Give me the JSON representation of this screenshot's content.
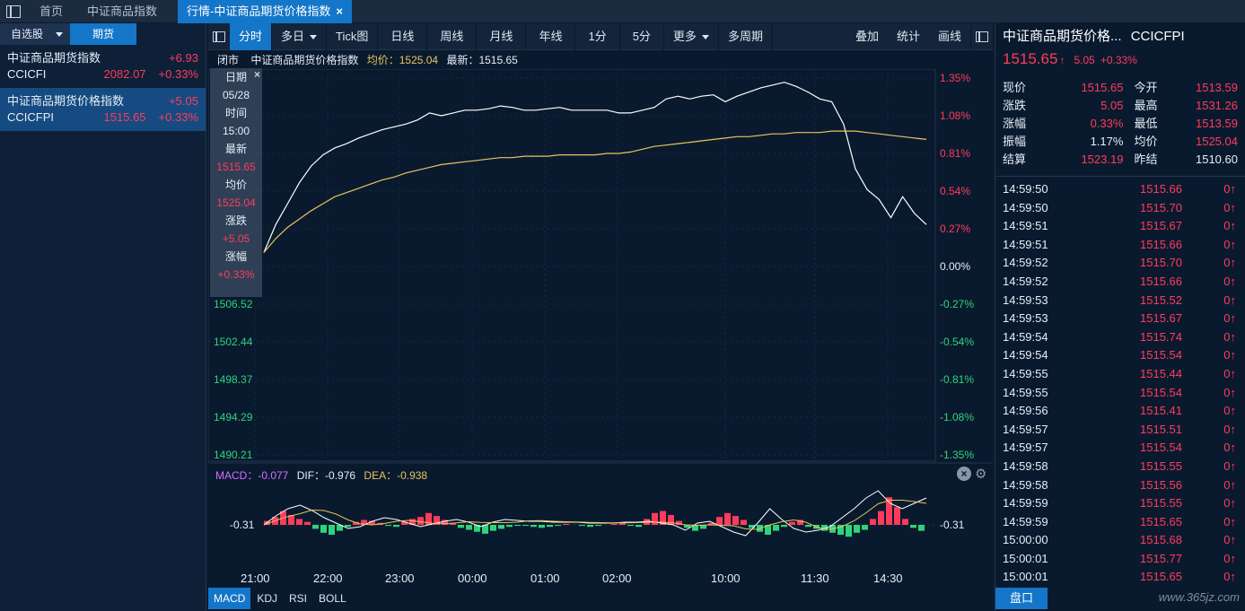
{
  "tabs": [
    {
      "label": "首页"
    },
    {
      "label": "中证商品指数"
    },
    {
      "label": "行情-中证商品期货价格指数"
    }
  ],
  "left": {
    "dropdown": "自选股",
    "futures_tab": "期货",
    "quotes": [
      {
        "name": "中证商品期货指数",
        "change": "+6.93",
        "code": "CCICFI",
        "price": "2082.07",
        "pct": "+0.33%"
      },
      {
        "name": "中证商品期货价格指数",
        "change": "+5.05",
        "code": "CCICFPI",
        "price": "1515.65",
        "pct": "+0.33%"
      }
    ]
  },
  "toolbar": {
    "items": [
      "分时",
      "多日",
      "Tick图",
      "日线",
      "周线",
      "月线",
      "年线",
      "1分",
      "5分",
      "更多",
      "多周期"
    ],
    "right_items": [
      "叠加",
      "统计",
      "画线"
    ]
  },
  "infoline": {
    "status": "闭市",
    "name": "中证商品期货价格指数",
    "avg_label": "均价：1525.04",
    "last_label": "最新：1515.65"
  },
  "tooltip": {
    "date_label": "日期",
    "date": "05/28",
    "time_label": "时间",
    "time": "15:00",
    "last_label": "最新",
    "last": "1515.65",
    "avg_label": "均价",
    "avg": "1525.04",
    "chg_label": "涨跌",
    "chg": "+5.05",
    "pct_label": "涨幅",
    "pct": "+0.33%"
  },
  "macd": {
    "macd_label": "MACD：-0.077",
    "dif_label": "DIF：-0.976",
    "dea_label": "DEA：-0.938",
    "axis_value": "-0.31"
  },
  "bottom_tabs": [
    "MACD",
    "KDJ",
    "RSI",
    "BOLL"
  ],
  "right": {
    "title": "中证商品期货价格...",
    "code": "CCICFPI",
    "price": "1515.65",
    "change": "5.05",
    "pct": "+0.33%",
    "stats": [
      {
        "k1": "现价",
        "v1": "1515.65",
        "c1": "up",
        "k2": "今开",
        "v2": "1513.59",
        "c2": "up"
      },
      {
        "k1": "涨跌",
        "v1": "5.05",
        "c1": "up",
        "k2": "最高",
        "v2": "1531.26",
        "c2": "up"
      },
      {
        "k1": "涨幅",
        "v1": "0.33%",
        "c1": "up",
        "k2": "最低",
        "v2": "1513.59",
        "c2": "up"
      },
      {
        "k1": "振幅",
        "v1": "1.17%",
        "c1": "white",
        "k2": "均价",
        "v2": "1525.04",
        "c2": "up"
      },
      {
        "k1": "结算",
        "v1": "1523.19",
        "c1": "up",
        "k2": "昨结",
        "v2": "1510.60",
        "c2": "white"
      }
    ],
    "ticks": [
      {
        "t": "14:59:50",
        "p": "1515.66",
        "v": "0"
      },
      {
        "t": "14:59:50",
        "p": "1515.70",
        "v": "0"
      },
      {
        "t": "14:59:51",
        "p": "1515.67",
        "v": "0"
      },
      {
        "t": "14:59:51",
        "p": "1515.66",
        "v": "0"
      },
      {
        "t": "14:59:52",
        "p": "1515.70",
        "v": "0"
      },
      {
        "t": "14:59:52",
        "p": "1515.66",
        "v": "0"
      },
      {
        "t": "14:59:53",
        "p": "1515.52",
        "v": "0"
      },
      {
        "t": "14:59:53",
        "p": "1515.67",
        "v": "0"
      },
      {
        "t": "14:59:54",
        "p": "1515.74",
        "v": "0"
      },
      {
        "t": "14:59:54",
        "p": "1515.54",
        "v": "0"
      },
      {
        "t": "14:59:55",
        "p": "1515.44",
        "v": "0"
      },
      {
        "t": "14:59:55",
        "p": "1515.54",
        "v": "0"
      },
      {
        "t": "14:59:56",
        "p": "1515.41",
        "v": "0"
      },
      {
        "t": "14:59:57",
        "p": "1515.51",
        "v": "0"
      },
      {
        "t": "14:59:57",
        "p": "1515.54",
        "v": "0"
      },
      {
        "t": "14:59:58",
        "p": "1515.55",
        "v": "0"
      },
      {
        "t": "14:59:58",
        "p": "1515.56",
        "v": "0"
      },
      {
        "t": "14:59:59",
        "p": "1515.55",
        "v": "0"
      },
      {
        "t": "14:59:59",
        "p": "1515.65",
        "v": "0"
      },
      {
        "t": "15:00:00",
        "p": "1515.68",
        "v": "0"
      },
      {
        "t": "15:00:01",
        "p": "1515.77",
        "v": "0"
      },
      {
        "t": "15:00:01",
        "p": "1515.65",
        "v": "0"
      }
    ],
    "pankou": "盘口"
  },
  "watermark": "www.365jz.com",
  "chart_data": {
    "type": "line",
    "left_axis": [
      "1506.52",
      "1502.44",
      "1498.37",
      "1494.29",
      "1490.21"
    ],
    "right_axis": [
      "1.35%",
      "1.08%",
      "0.81%",
      "0.54%",
      "0.27%",
      "0.00%",
      "-0.27%",
      "-0.54%",
      "-0.81%",
      "-1.08%",
      "-1.35%"
    ],
    "x_ticks": [
      "21:00",
      "22:00",
      "23:00",
      "00:00",
      "01:00",
      "02:00",
      "10:00",
      "11:30",
      "14:30"
    ],
    "series": [
      {
        "name": "最新",
        "color": "#ffffff",
        "pct": [
          0.1,
          0.3,
          0.45,
          0.6,
          0.72,
          0.8,
          0.85,
          0.88,
          0.92,
          0.95,
          0.98,
          1.0,
          1.02,
          1.05,
          1.1,
          1.08,
          1.1,
          1.12,
          1.12,
          1.13,
          1.15,
          1.14,
          1.12,
          1.12,
          1.13,
          1.14,
          1.12,
          1.12,
          1.12,
          1.12,
          1.1,
          1.1,
          1.12,
          1.14,
          1.2,
          1.22,
          1.2,
          1.22,
          1.23,
          1.18,
          1.22,
          1.25,
          1.28,
          1.3,
          1.32,
          1.29,
          1.25,
          1.2,
          1.18,
          1.02,
          0.7,
          0.55,
          0.48,
          0.35,
          0.5,
          0.38,
          0.3
        ]
      },
      {
        "name": "均价",
        "color": "#e7c55d",
        "pct": [
          0.1,
          0.2,
          0.28,
          0.34,
          0.4,
          0.45,
          0.5,
          0.53,
          0.56,
          0.59,
          0.62,
          0.64,
          0.67,
          0.69,
          0.71,
          0.73,
          0.74,
          0.75,
          0.76,
          0.77,
          0.78,
          0.78,
          0.79,
          0.79,
          0.79,
          0.8,
          0.8,
          0.8,
          0.8,
          0.81,
          0.81,
          0.82,
          0.84,
          0.86,
          0.87,
          0.88,
          0.89,
          0.9,
          0.91,
          0.92,
          0.93,
          0.93,
          0.94,
          0.95,
          0.95,
          0.96,
          0.96,
          0.96,
          0.97,
          0.97,
          0.97,
          0.96,
          0.95,
          0.94,
          0.93,
          0.92,
          0.91
        ]
      }
    ],
    "ylim_pct": [
      -1.35,
      1.35
    ]
  }
}
